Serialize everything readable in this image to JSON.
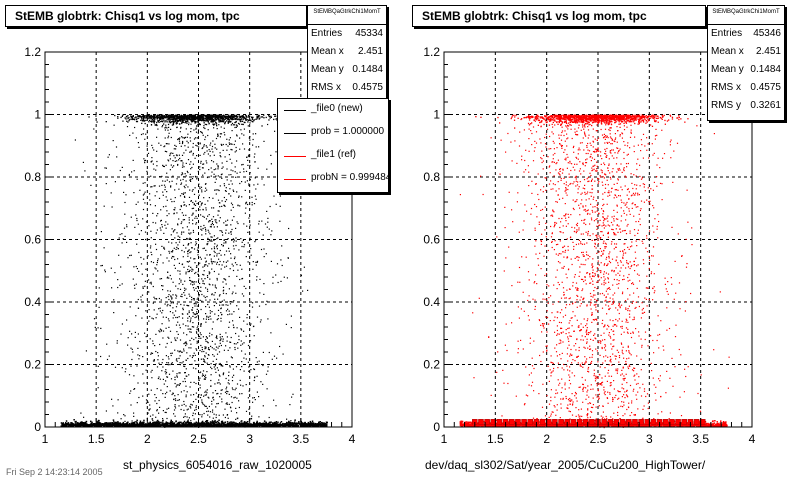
{
  "chart_data": [
    {
      "type": "scatter",
      "title": "StEMB globtrk: Chisq1 vs log mom, tpc",
      "xlabel": "st_physics_6054016_raw_1020005",
      "xlim": [
        1,
        4
      ],
      "ylim": [
        0,
        1.2
      ],
      "xticks": [
        "1",
        "1.5",
        "2",
        "2.5",
        "3",
        "3.5",
        "4"
      ],
      "yticks": [
        "0",
        "0.2",
        "0.4",
        "0.6",
        "0.8",
        "1",
        "1.2"
      ],
      "grid": true,
      "marker_color": "#000000",
      "stats": {
        "header": "StEMBQaGtrkChi1MomT",
        "rows": [
          {
            "label": "Entries",
            "value": "45334"
          },
          {
            "label": "Mean x",
            "value": "2.451"
          },
          {
            "label": "Mean y",
            "value": "0.1484"
          },
          {
            "label": "RMS x",
            "value": "0.4575"
          }
        ]
      },
      "legend": {
        "placement": "top-right",
        "entries": [
          {
            "label": "_file0 (new)",
            "color": "#000000"
          },
          {
            "label": "prob = 1.000000",
            "color": "#000000"
          },
          {
            "label": "_file1 (ref)",
            "color": "#ff0000"
          },
          {
            "label": "probN = 0.999484",
            "color": "#ff0000"
          }
        ]
      },
      "series": [
        {
          "x_range": [
            1.2,
            3.7
          ],
          "y_values": [
            0.0,
            0.02,
            1.0
          ],
          "note_free": true
        }
      ]
    },
    {
      "type": "scatter",
      "title": "StEMB globtrk: Chisq1 vs log mom, tpc",
      "xlabel": "dev/daq_sl302/Sat/year_2005/CuCu200_HighTower/",
      "xlim": [
        1,
        4
      ],
      "ylim": [
        0,
        1.2
      ],
      "xticks": [
        "1",
        "1.5",
        "2",
        "2.5",
        "3",
        "3.5",
        "4"
      ],
      "yticks": [
        "0",
        "0.2",
        "0.4",
        "0.6",
        "0.8",
        "1",
        "1.2"
      ],
      "grid": true,
      "marker_color": "#ff0000",
      "stats": {
        "header": "StEMBQaGtrkChi1MomT",
        "rows": [
          {
            "label": "Entries",
            "value": "45346"
          },
          {
            "label": "Mean x",
            "value": "2.451"
          },
          {
            "label": "Mean y",
            "value": "0.1484"
          },
          {
            "label": "RMS x",
            "value": "0.4575"
          },
          {
            "label": "RMS y",
            "value": "0.3261"
          }
        ]
      }
    }
  ],
  "footer_date": "Fri Sep 2 14:23:14 2005"
}
